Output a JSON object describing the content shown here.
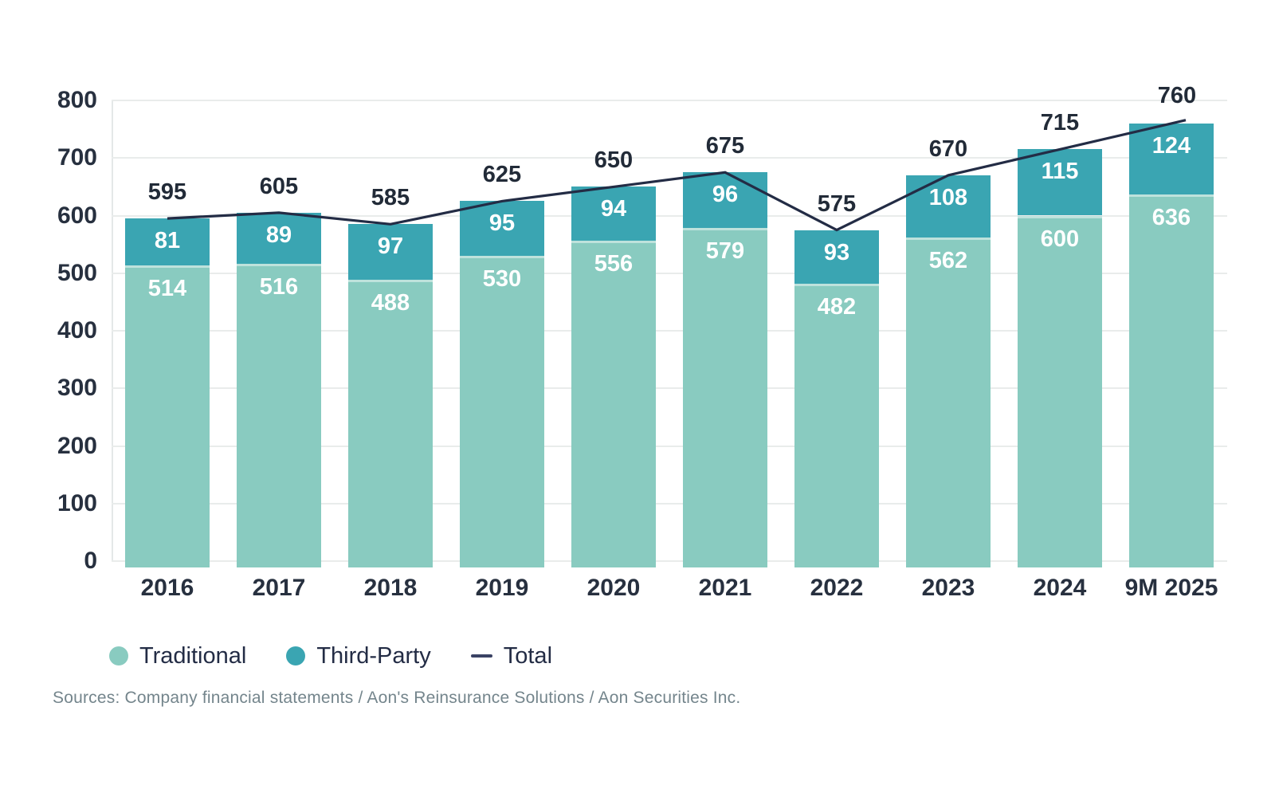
{
  "chart_data": {
    "type": "bar",
    "stacked": true,
    "categories": [
      "2016",
      "2017",
      "2018",
      "2019",
      "2020",
      "2021",
      "2022",
      "2023",
      "2024",
      "9M 2025"
    ],
    "series": [
      {
        "name": "Traditional",
        "color": "#89cbc0",
        "values": [
          514,
          516,
          488,
          530,
          556,
          579,
          482,
          562,
          600,
          636
        ]
      },
      {
        "name": "Third-Party",
        "color": "#3aa5b2",
        "values": [
          81,
          89,
          97,
          95,
          94,
          96,
          93,
          108,
          115,
          124
        ]
      }
    ],
    "line_series": {
      "name": "Total",
      "color": "#232c45",
      "values": [
        595,
        605,
        585,
        625,
        650,
        675,
        575,
        670,
        715,
        760
      ]
    },
    "title": "",
    "xlabel": "",
    "ylabel": "",
    "ylim": [
      0,
      800
    ],
    "yticks": [
      0,
      100,
      200,
      300,
      400,
      500,
      600,
      700,
      800
    ],
    "grid": true,
    "legend_position": "bottom"
  },
  "legend": {
    "items": [
      {
        "label": "Traditional",
        "color": "#89cbc0",
        "type": "circle"
      },
      {
        "label": "Third-Party",
        "color": "#3aa5b2",
        "type": "circle"
      },
      {
        "label": "Total",
        "color": "#3a4264",
        "type": "dash"
      }
    ]
  },
  "footer": {
    "sources": "Sources: Company financial statements / Aon's Reinsurance Solutions / Aon Securities Inc."
  },
  "colors": {
    "traditional": "#89cbc0",
    "third_party": "#3aa5b2",
    "total_line": "#232c45",
    "gridline": "#e9eceb",
    "axis_text": "#27303f",
    "sources_text": "#74858c",
    "background": "#ffffff"
  }
}
